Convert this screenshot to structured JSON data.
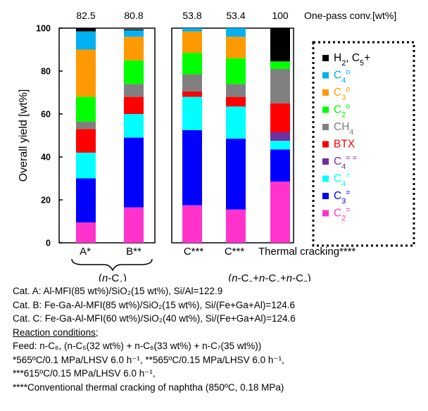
{
  "chart_data": {
    "type": "bar",
    "stacked": true,
    "ylabel": "Overall yield [wt%]",
    "ylim": [
      0,
      100
    ],
    "yticks": [
      0,
      20,
      40,
      60,
      80,
      100
    ],
    "top_label": "One-pass conv.[wt%]",
    "categories": [
      "A*",
      "B**",
      "C***",
      "C***",
      "Thermal cracking****"
    ],
    "conversions": [
      "82.5",
      "80.8",
      "53.8",
      "53.4",
      "100"
    ],
    "group_labels": [
      "(n-C6)",
      "(n-C5+n-C6+n-C7)"
    ],
    "legend_position": "right",
    "series": [
      {
        "name": "C2=",
        "color": "#ff33cc",
        "values": [
          9.5,
          16.5,
          17.5,
          15.5,
          28.5
        ]
      },
      {
        "name": "C3=",
        "color": "#0000ff",
        "values": [
          20.5,
          32.5,
          35.0,
          33.0,
          15.0
        ]
      },
      {
        "name": "C4=",
        "color": "#00ffff",
        "values": [
          12.0,
          11.0,
          15.5,
          15.0,
          4.0
        ]
      },
      {
        "name": "C4==",
        "color": "#7030a0",
        "values": [
          0.0,
          0.0,
          0.0,
          0.0,
          4.0
        ]
      },
      {
        "name": "BTX",
        "color": "#ff0000",
        "values": [
          11.0,
          8.0,
          2.5,
          4.5,
          13.5
        ]
      },
      {
        "name": "CH4",
        "color": "#808080",
        "values": [
          3.5,
          6.0,
          8.0,
          6.0,
          16.0
        ]
      },
      {
        "name": "C2°",
        "color": "#00ff00",
        "values": [
          11.5,
          11.0,
          10.0,
          12.0,
          3.5
        ]
      },
      {
        "name": "C3°",
        "color": "#ff9900",
        "values": [
          22.0,
          11.0,
          10.0,
          10.0,
          0.0
        ]
      },
      {
        "name": "C4°",
        "color": "#00b0f0",
        "values": [
          8.5,
          3.0,
          1.5,
          4.0,
          0.0
        ]
      },
      {
        "name": "H2, C5+",
        "color": "#000000",
        "values": [
          1.5,
          0.5,
          0.0,
          0.0,
          15.5
        ]
      }
    ]
  },
  "notes": {
    "cat_a": "Cat. A: Al-MFI(85 wt%)/SiO₂(15 wt%), Si/Al=122.9",
    "cat_b": "Cat. B: Fe-Ga-Al-MFI(85 wt%)/SiO₂(15 wt%), Si/(Fe+Ga+Al)=124.6",
    "cat_c": "Cat. C: Fe-Ga-Al-MFI(60 wt%)/SiO₂(40 wt%), Si/(Fe+Ga+Al)=124.6",
    "reaction_title": "Reaction conditions;",
    "feed": "Feed: n-C₆, (n-C₅(32 wt%) + n-C₆(33 wt%) + n-C₇(35 wt%))",
    "cond1": "*565ºC/0.1 MPa/LHSV 6.0 h⁻¹, **565ºC/0.15 MPa/LHSV 6.0 h⁻¹,",
    "cond2": "***615ºC/0.15 MPa/LHSV 6.0 h⁻¹,",
    "cond3": "****Conventional thermal cracking of naphtha (850ºC, 0.18 MPa)"
  }
}
